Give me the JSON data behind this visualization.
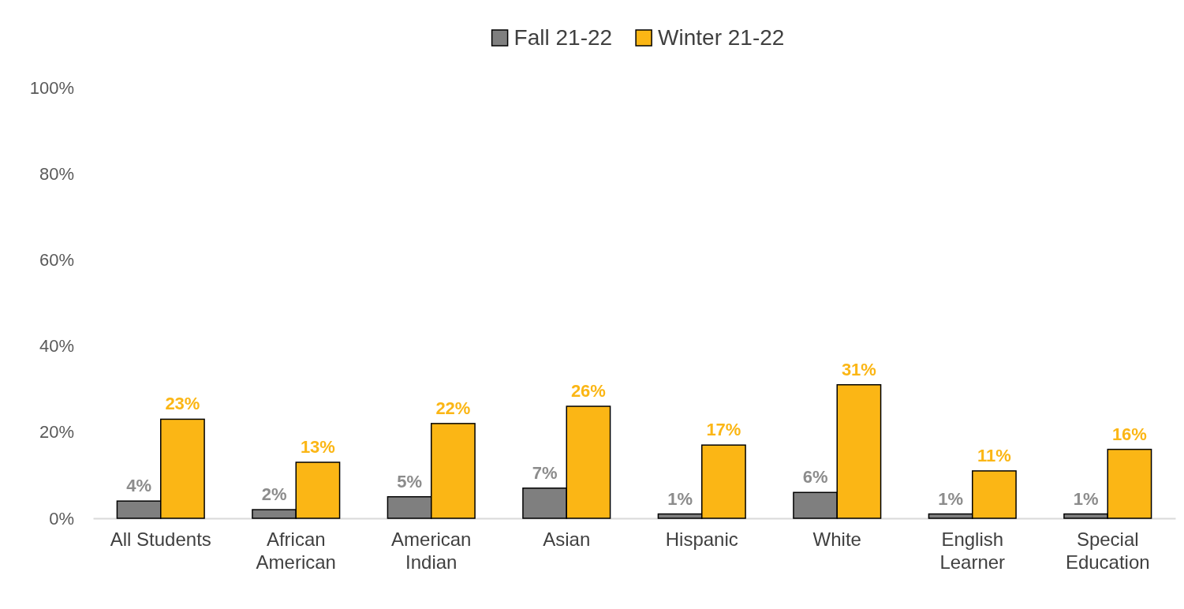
{
  "chart_data": {
    "type": "bar",
    "categories": [
      "All Students",
      "African American",
      "American Indian",
      "Asian",
      "Hispanic",
      "White",
      "English Learner",
      "Special Education"
    ],
    "series": [
      {
        "name": "Fall 21-22",
        "color": "#7f7f7f",
        "values": [
          4,
          2,
          5,
          7,
          1,
          6,
          1,
          1
        ],
        "value_labels": [
          "4%",
          "2%",
          "5%",
          "7%",
          "1%",
          "6%",
          "1%",
          "1%"
        ]
      },
      {
        "name": "Winter 21-22",
        "color": "#fbb615",
        "values": [
          23,
          13,
          22,
          26,
          17,
          31,
          11,
          16
        ],
        "value_labels": [
          "23%",
          "13%",
          "22%",
          "26%",
          "17%",
          "31%",
          "11%",
          "16%"
        ]
      }
    ],
    "ylim": [
      0,
      100
    ],
    "yticks": [
      {
        "value": 0,
        "label": "0%"
      },
      {
        "value": 20,
        "label": "20%"
      },
      {
        "value": 40,
        "label": "40%"
      },
      {
        "value": 60,
        "label": "60%"
      },
      {
        "value": 80,
        "label": "80%"
      },
      {
        "value": 100,
        "label": "100%"
      }
    ],
    "grid": false,
    "legend": "top"
  }
}
